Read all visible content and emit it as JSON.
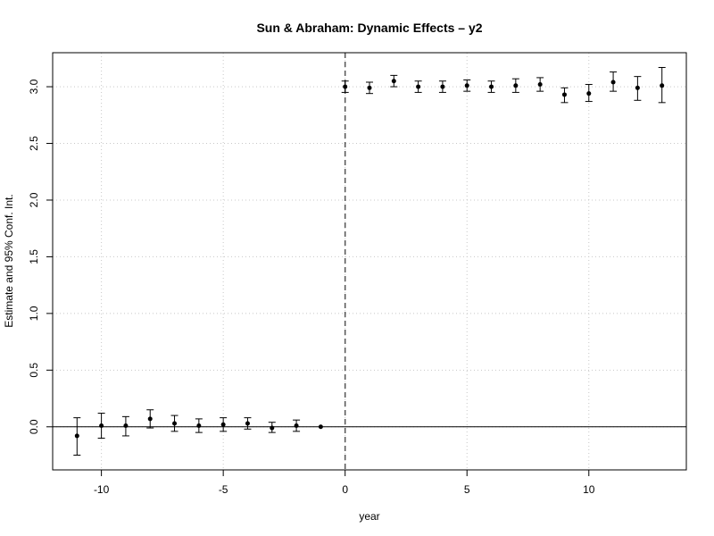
{
  "chart_data": {
    "type": "scatter",
    "title": "Sun & Abraham: Dynamic Effects – y2",
    "xlabel": "year",
    "ylabel": "Estimate and 95% Conf. Int.",
    "xlim": [
      -12,
      14
    ],
    "ylim": [
      -0.38,
      3.3
    ],
    "x_ticks": [
      -10,
      -5,
      0,
      5,
      10
    ],
    "x_tick_labels": [
      "-10",
      "-5",
      "0",
      "5",
      "10"
    ],
    "y_ticks": [
      0.0,
      0.5,
      1.0,
      1.5,
      2.0,
      2.5,
      3.0
    ],
    "y_tick_labels": [
      "0.0",
      "0.5",
      "1.0",
      "1.5",
      "2.0",
      "2.5",
      "3.0"
    ],
    "grid": true,
    "vline_x": 0,
    "hline_y": 0,
    "points": [
      {
        "x": -11,
        "y": -0.08,
        "lo": -0.25,
        "hi": 0.08
      },
      {
        "x": -10,
        "y": 0.01,
        "lo": -0.1,
        "hi": 0.12
      },
      {
        "x": -9,
        "y": 0.01,
        "lo": -0.08,
        "hi": 0.09
      },
      {
        "x": -8,
        "y": 0.07,
        "lo": -0.01,
        "hi": 0.15
      },
      {
        "x": -7,
        "y": 0.03,
        "lo": -0.04,
        "hi": 0.1
      },
      {
        "x": -6,
        "y": 0.01,
        "lo": -0.05,
        "hi": 0.07
      },
      {
        "x": -5,
        "y": 0.02,
        "lo": -0.04,
        "hi": 0.08
      },
      {
        "x": -4,
        "y": 0.03,
        "lo": -0.02,
        "hi": 0.08
      },
      {
        "x": -3,
        "y": -0.01,
        "lo": -0.05,
        "hi": 0.04
      },
      {
        "x": -2,
        "y": 0.01,
        "lo": -0.04,
        "hi": 0.06
      },
      {
        "x": -1,
        "y": 0.0,
        "lo": 0.0,
        "hi": 0.0
      },
      {
        "x": 0,
        "y": 3.0,
        "lo": 2.95,
        "hi": 3.05
      },
      {
        "x": 1,
        "y": 2.99,
        "lo": 2.94,
        "hi": 3.04
      },
      {
        "x": 2,
        "y": 3.05,
        "lo": 3.0,
        "hi": 3.1
      },
      {
        "x": 3,
        "y": 3.0,
        "lo": 2.95,
        "hi": 3.05
      },
      {
        "x": 4,
        "y": 3.0,
        "lo": 2.95,
        "hi": 3.05
      },
      {
        "x": 5,
        "y": 3.01,
        "lo": 2.96,
        "hi": 3.06
      },
      {
        "x": 6,
        "y": 3.0,
        "lo": 2.95,
        "hi": 3.05
      },
      {
        "x": 7,
        "y": 3.01,
        "lo": 2.95,
        "hi": 3.07
      },
      {
        "x": 8,
        "y": 3.02,
        "lo": 2.96,
        "hi": 3.08
      },
      {
        "x": 9,
        "y": 2.93,
        "lo": 2.86,
        "hi": 2.99
      },
      {
        "x": 10,
        "y": 2.94,
        "lo": 2.87,
        "hi": 3.02
      },
      {
        "x": 11,
        "y": 3.04,
        "lo": 2.96,
        "hi": 3.13
      },
      {
        "x": 12,
        "y": 2.99,
        "lo": 2.88,
        "hi": 3.09
      },
      {
        "x": 13,
        "y": 3.01,
        "lo": 2.86,
        "hi": 3.17
      }
    ]
  }
}
